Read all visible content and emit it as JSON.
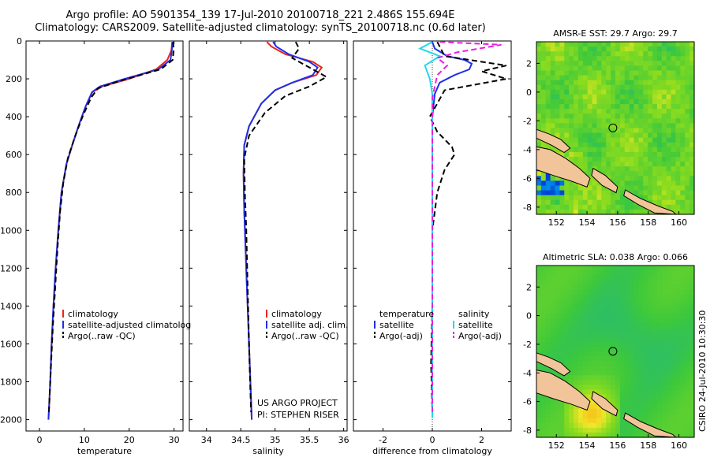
{
  "header": {
    "title_line1": "Argo profile: AO 5901354_139 17-Jul-2010 20100718_221 2.486S 155.694E",
    "title_line2": "Climatology: CARS2009. Satellite-adjusted climatology: synTS_20100718.nc (0.6d later)"
  },
  "footer": {
    "project": "US ARGO PROJECT",
    "pi": "PI: STEPHEN RISER",
    "stamp": "CSIRO 24-Jul-2010 10:30:30"
  },
  "colors": {
    "climatology": "#e8251f",
    "satellite": "#1f2fe8",
    "argo": "#000000",
    "sal_satellite": "#22d8ea",
    "sal_argo": "#e81fe0",
    "land": "#f2c49a"
  },
  "chart_data": [
    {
      "type": "line",
      "name": "temperature",
      "xlabel": "temperature",
      "ylabel": "",
      "xlim": [
        -3,
        32
      ],
      "ylim": [
        2060,
        0
      ],
      "xticks": [
        0,
        10,
        20,
        30
      ],
      "yticks": [
        0,
        200,
        400,
        600,
        800,
        1000,
        1200,
        1400,
        1600,
        1800,
        2000
      ],
      "legend": [
        "climatology",
        "satellite-adjusted climatolog",
        "Argo(..raw -QC)"
      ],
      "legend_position": "lower-center",
      "series": [
        {
          "name": "climatology",
          "color": "#e8251f",
          "style": "solid",
          "x": [
            29.6,
            29.4,
            28.5,
            26.0,
            20.0,
            14.0,
            11.8,
            10.2,
            8.7,
            7.3,
            6.0,
            4.9,
            4.2,
            3.6,
            3.1,
            2.7,
            2.4,
            2.2,
            2.0
          ],
          "y": [
            5,
            50,
            100,
            150,
            200,
            240,
            270,
            350,
            450,
            550,
            650,
            800,
            1000,
            1200,
            1400,
            1600,
            1800,
            1900,
            2000
          ]
        },
        {
          "name": "satellite-adjusted climatology",
          "color": "#1f2fe8",
          "style": "solid",
          "x": [
            29.6,
            29.5,
            29.2,
            26.5,
            19.0,
            13.5,
            11.7,
            10.2,
            8.7,
            7.3,
            6.0,
            4.9,
            4.2,
            3.6,
            3.1,
            2.7,
            2.4,
            2.2,
            2.0
          ],
          "y": [
            5,
            50,
            100,
            150,
            200,
            240,
            270,
            350,
            450,
            550,
            650,
            800,
            1000,
            1200,
            1400,
            1600,
            1800,
            1900,
            2000
          ]
        },
        {
          "name": "Argo(..raw -QC)",
          "color": "#000000",
          "style": "dashed",
          "x": [
            29.8,
            29.9,
            29.7,
            27.0,
            18.0,
            13.0,
            11.5,
            9.6,
            8.0,
            6.3,
            5.3,
            4.6,
            4.0,
            3.5,
            3.0,
            2.6,
            2.3,
            2.1
          ],
          "y": [
            5,
            50,
            100,
            150,
            210,
            250,
            300,
            400,
            500,
            620,
            750,
            900,
            1100,
            1300,
            1500,
            1700,
            1850,
            1960
          ]
        }
      ]
    },
    {
      "type": "line",
      "name": "salinity",
      "xlabel": "salinity",
      "ylabel": "",
      "xlim": [
        33.75,
        36.05
      ],
      "ylim": [
        2060,
        0
      ],
      "xticks": [
        34,
        34.5,
        35,
        35.5,
        36
      ],
      "legend": [
        "climatology",
        "satellite adj. clim.",
        "Argo(..raw -QC)"
      ],
      "legend_position": "lower-center",
      "series": [
        {
          "name": "climatology",
          "color": "#e8251f",
          "style": "solid",
          "x": [
            34.88,
            34.95,
            35.15,
            35.55,
            35.68,
            35.6,
            35.25,
            35.0,
            34.8,
            34.62,
            34.55,
            34.54,
            34.55,
            34.57,
            34.59,
            34.61,
            34.63,
            34.65,
            34.66
          ],
          "y": [
            5,
            30,
            70,
            110,
            140,
            180,
            220,
            260,
            330,
            450,
            550,
            700,
            900,
            1100,
            1300,
            1500,
            1700,
            1900,
            2000
          ]
        },
        {
          "name": "satellite adj. clim.",
          "color": "#1f2fe8",
          "style": "solid",
          "x": [
            34.97,
            35.02,
            35.2,
            35.5,
            35.62,
            35.55,
            35.25,
            35.0,
            34.8,
            34.62,
            34.55,
            34.54,
            34.55,
            34.57,
            34.59,
            34.61,
            34.63,
            34.65,
            34.66
          ],
          "y": [
            5,
            30,
            70,
            110,
            140,
            180,
            220,
            260,
            330,
            450,
            550,
            700,
            900,
            1100,
            1300,
            1500,
            1700,
            1900,
            2000
          ]
        },
        {
          "name": "Argo(..raw -QC)",
          "color": "#000000",
          "style": "dashed",
          "x": [
            35.3,
            35.35,
            35.25,
            35.55,
            35.75,
            35.5,
            35.15,
            34.85,
            34.62,
            34.55,
            34.56,
            34.58,
            34.6,
            34.62,
            34.64,
            34.65
          ],
          "y": [
            5,
            40,
            90,
            150,
            190,
            240,
            290,
            380,
            500,
            620,
            800,
            1000,
            1300,
            1600,
            1850,
            1960
          ]
        }
      ]
    },
    {
      "type": "line",
      "name": "difference",
      "xlabel": "difference from climatology",
      "ylabel": "",
      "xlim": [
        -3.2,
        3.2
      ],
      "ylim": [
        2060,
        0
      ],
      "xticks": [
        -2,
        0,
        2
      ],
      "legend": [
        "temperature",
        "satellite",
        "Argo(-adj)",
        "salinity",
        "satellite",
        "Argo(-adj)"
      ],
      "legend_position": "lower-center",
      "series": [
        {
          "name": "temperature satellite",
          "color": "#1f2fe8",
          "style": "solid",
          "x": [
            0.0,
            0.1,
            0.6,
            1.3,
            1.6,
            1.5,
            0.9,
            0.3,
            0.1,
            0.0,
            0.0,
            0.0,
            0.0,
            0.0
          ],
          "y": [
            5,
            40,
            80,
            100,
            120,
            150,
            180,
            220,
            280,
            400,
            600,
            1000,
            1500,
            1990
          ]
        },
        {
          "name": "temperature Argo(-adj)",
          "color": "#000000",
          "style": "dashed",
          "x": [
            0.2,
            0.5,
            3.0,
            2.0,
            3.0,
            0.5,
            0.2,
            -0.1,
            0.2,
            0.8,
            0.9,
            0.5,
            0.2,
            0.0,
            0.0,
            -0.05,
            0.0
          ],
          "y": [
            5,
            80,
            130,
            160,
            200,
            260,
            330,
            400,
            480,
            560,
            600,
            680,
            800,
            1000,
            1400,
            1700,
            1960
          ]
        },
        {
          "name": "salinity satellite",
          "color": "#22d8ea",
          "style": "solid",
          "x": [
            0.0,
            -0.5,
            0.3,
            -0.3,
            -0.1,
            0.0,
            0.0,
            0.0,
            0.0,
            0.0
          ],
          "y": [
            5,
            40,
            80,
            130,
            200,
            280,
            400,
            800,
            1500,
            1990
          ]
        },
        {
          "name": "salinity Argo(-adj)",
          "color": "#e81fe0",
          "style": "dashed",
          "x": [
            0.3,
            2.8,
            1.0,
            0.2,
            0.6,
            0.2,
            0.0,
            0.0,
            0.0,
            0.0
          ],
          "y": [
            5,
            20,
            60,
            90,
            130,
            180,
            300,
            600,
            1200,
            1960
          ]
        }
      ]
    },
    {
      "type": "heatmap",
      "name": "sst-map",
      "title": "AMSR-E SST: 29.7 Argo: 29.7",
      "xlim": [
        150.7,
        161.0
      ],
      "ylim": [
        -8.5,
        3.5
      ],
      "xticks": [
        152,
        154,
        156,
        158,
        160
      ],
      "yticks": [
        2,
        0,
        -2,
        -4,
        -6,
        -8
      ],
      "float_location": [
        155.69,
        -2.49
      ]
    },
    {
      "type": "heatmap",
      "name": "sla-map",
      "title": "Altimetric SLA: 0.038 Argo: 0.066",
      "xlim": [
        150.7,
        161.0
      ],
      "ylim": [
        -8.5,
        3.5
      ],
      "xticks": [
        152,
        154,
        156,
        158,
        160
      ],
      "yticks": [
        2,
        0,
        -2,
        -4,
        -6,
        -8
      ],
      "float_location": [
        155.69,
        -2.49
      ]
    }
  ]
}
